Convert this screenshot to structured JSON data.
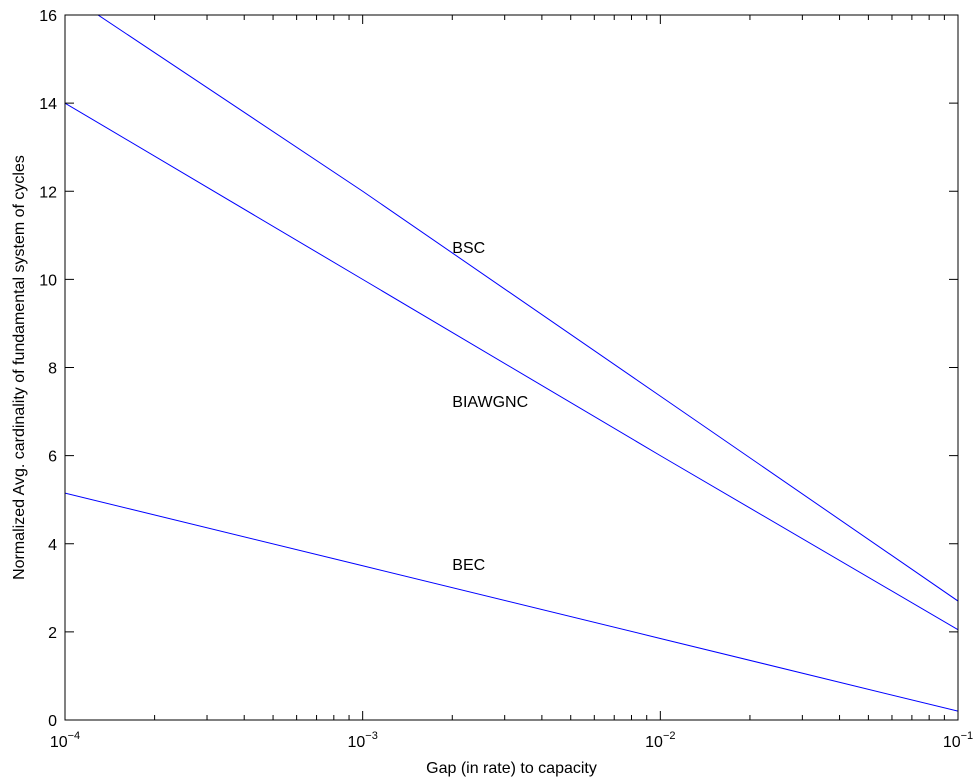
{
  "chart_data": {
    "type": "line",
    "title": "",
    "xlabel": "Gap (in rate) to capacity",
    "ylabel": "Normalized Avg. cardinality of fundamental system of cycles",
    "x_scale": "log",
    "xlim": [
      0.0001,
      0.1
    ],
    "ylim": [
      0,
      16
    ],
    "grid": false,
    "legend": "none",
    "x_ticks": [
      {
        "base": "10",
        "exp": "−4",
        "value": 0.0001
      },
      {
        "base": "10",
        "exp": "−3",
        "value": 0.001
      },
      {
        "base": "10",
        "exp": "−2",
        "value": 0.01
      },
      {
        "base": "10",
        "exp": "−1",
        "value": 0.1
      }
    ],
    "y_ticks": [
      0,
      2,
      4,
      6,
      8,
      10,
      12,
      14,
      16
    ],
    "line_color": "#0000ff",
    "series": [
      {
        "name": "BSC",
        "label_at": {
          "x": 0.002,
          "y": 10.6
        },
        "x": [
          0.0001,
          0.001,
          0.01,
          0.1
        ],
        "y": [
          16.5,
          12.0,
          7.35,
          2.7
        ]
      },
      {
        "name": "BIAWGNC",
        "label_at": {
          "x": 0.002,
          "y": 7.1
        },
        "x": [
          0.0001,
          0.001,
          0.01,
          0.1
        ],
        "y": [
          14.0,
          10.0,
          6.0,
          2.05
        ]
      },
      {
        "name": "BEC",
        "label_at": {
          "x": 0.002,
          "y": 3.4
        },
        "x": [
          0.0001,
          0.001,
          0.01,
          0.1
        ],
        "y": [
          5.15,
          3.5,
          1.85,
          0.2
        ]
      }
    ]
  }
}
